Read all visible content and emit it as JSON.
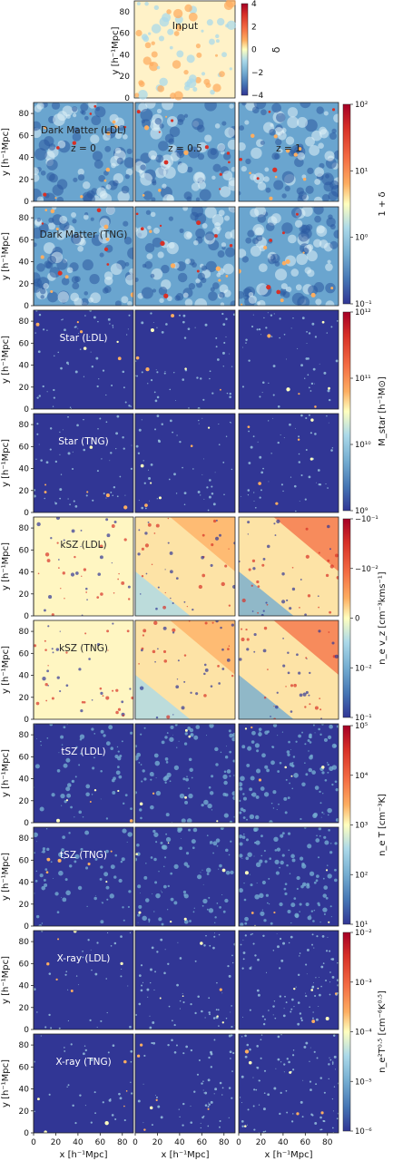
{
  "figure": {
    "x_axis_label": "x [h⁻¹Mpc]",
    "y_axis_label": "y [h⁻¹Mpc]",
    "tick_labels": [
      "0",
      "20",
      "40",
      "60",
      "80"
    ],
    "redshift_labels": [
      "z = 0",
      "z = 0.5",
      "z = 1"
    ],
    "input_panel": {
      "label": "Input",
      "colorbar_label": "δ",
      "colorbar_ticks": [
        "4",
        "2",
        "0",
        "−2",
        "−4"
      ]
    },
    "colorbars": [
      {
        "label": "1 + δ",
        "ticks": [
          "10²",
          "10¹",
          "10⁰",
          "10⁻¹"
        ]
      },
      {
        "label": "M_star [h⁻¹M⊙]",
        "ticks": [
          "10¹²",
          "10¹¹",
          "10¹⁰",
          "10⁹"
        ]
      },
      {
        "label": "n_e v_z [cm⁻³kms⁻¹]",
        "ticks": [
          "−10⁻¹",
          "−10⁻²",
          "0",
          "10⁻²",
          "10⁻¹"
        ]
      },
      {
        "label": "n_e T [cm⁻³K]",
        "ticks": [
          "10⁵",
          "10⁴",
          "10³",
          "10²",
          "10¹"
        ]
      },
      {
        "label": "n_e²T⁰ᐧ⁵ [cm⁻⁶K⁰ᐧ⁵]",
        "ticks": [
          "10⁻²",
          "10⁻³",
          "10⁻⁴",
          "10⁻⁵",
          "10⁻⁶"
        ]
      }
    ],
    "rows": [
      {
        "label": "Dark Matter (LDL)",
        "field": "dm"
      },
      {
        "label": "Dark Matter (TNG)",
        "field": "dm"
      },
      {
        "label": "Star (LDL)",
        "field": "star"
      },
      {
        "label": "Star (TNG)",
        "field": "star"
      },
      {
        "label": "kSZ (LDL)",
        "field": "ksz"
      },
      {
        "label": "kSZ (TNG)",
        "field": "ksz"
      },
      {
        "label": "tSZ (LDL)",
        "field": "tsz"
      },
      {
        "label": "tSZ (TNG)",
        "field": "tsz"
      },
      {
        "label": "X-ray (LDL)",
        "field": "xray"
      },
      {
        "label": "X-ray (TNG)",
        "field": "xray"
      }
    ],
    "colors": {
      "dark_blue": "#313695",
      "mid_blue": "#4575b4",
      "light_blue": "#abd9e9",
      "pale_yellow": "#ffffbf",
      "orange": "#fdae61",
      "red": "#d73027",
      "dark_red": "#a50026"
    }
  },
  "chart_data": {
    "type": "heatmap",
    "colormap": "RdYlBu_r",
    "x_range": [
      0,
      90
    ],
    "y_range": [
      0,
      90
    ],
    "x_ticks": [
      0,
      20,
      40,
      60,
      80
    ],
    "y_ticks": [
      0,
      20,
      40,
      60,
      80
    ],
    "columns": [
      "z = 0",
      "z = 0.5",
      "z = 1"
    ],
    "input_colorbar": {
      "label": "δ",
      "range": [
        -4,
        4
      ],
      "scale": "linear"
    },
    "panels": [
      {
        "row": "Input",
        "field": "δ"
      },
      {
        "row": "Dark Matter (LDL)",
        "field": "1 + δ",
        "range": [
          0.1,
          100
        ],
        "scale": "log"
      },
      {
        "row": "Dark Matter (TNG)",
        "field": "1 + δ",
        "range": [
          0.1,
          100
        ],
        "scale": "log"
      },
      {
        "row": "Star (LDL)",
        "field": "M_star",
        "range": [
          1000000000.0,
          1000000000000.0
        ],
        "scale": "log"
      },
      {
        "row": "Star (TNG)",
        "field": "M_star",
        "range": [
          1000000000.0,
          1000000000000.0
        ],
        "scale": "log"
      },
      {
        "row": "kSZ (LDL)",
        "field": "n_e v_z",
        "range": [
          -0.1,
          0.1
        ],
        "scale": "symlog"
      },
      {
        "row": "kSZ (TNG)",
        "field": "n_e v_z",
        "range": [
          -0.1,
          0.1
        ],
        "scale": "symlog"
      },
      {
        "row": "tSZ (LDL)",
        "field": "n_e T",
        "range": [
          10,
          100000
        ],
        "scale": "log"
      },
      {
        "row": "tSZ (TNG)",
        "field": "n_e T",
        "range": [
          10,
          100000
        ],
        "scale": "log"
      },
      {
        "row": "X-ray (LDL)",
        "field": "n_e²T⁰ᐧ⁵",
        "range": [
          1e-06,
          0.01
        ],
        "scale": "log"
      },
      {
        "row": "X-ray (TNG)",
        "field": "n_e²T⁰ᐧ⁵",
        "range": [
          1e-06,
          0.01
        ],
        "scale": "log"
      }
    ]
  }
}
